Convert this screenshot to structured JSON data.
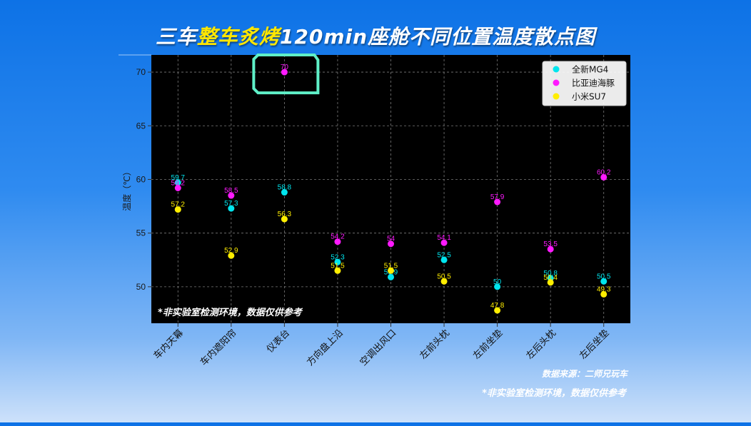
{
  "title": {
    "prefix": "三车",
    "highlight": "整车炙烤",
    "suffix": "120min座舱不同位置温度散点图"
  },
  "inner_note": "*非实验室检测环境，数据仅供参考",
  "footer": {
    "source": "数据来源：二师兄玩车",
    "note": "*非实验室检测环境，数据仅供参考"
  },
  "chart_data": {
    "type": "scatter",
    "title": "三车整车炙烤120min座舱不同位置温度散点图",
    "xlabel": "",
    "ylabel": "温度（℃）",
    "categories": [
      "车内天幕",
      "车内遮阳帘",
      "仪表台",
      "方向盘上沿",
      "空调出风口",
      "左前头枕",
      "左前坐垫",
      "左后头枕",
      "左后坐垫"
    ],
    "yticks": [
      50,
      55,
      60,
      65,
      70
    ],
    "ylim": [
      46.6,
      71.6
    ],
    "grid": true,
    "legend_position": "top-right",
    "series": [
      {
        "name": "全新MG4",
        "color": "#00e5ee",
        "values": [
          59.7,
          57.3,
          58.8,
          52.3,
          50.9,
          52.5,
          50.0,
          50.8,
          50.5
        ],
        "labels": [
          "59.7",
          "57.3",
          "58.8",
          "52.3",
          "50.9",
          "52.5",
          "50",
          "50.8",
          "50.5"
        ]
      },
      {
        "name": "比亚迪海豚",
        "color": "#ff1aff",
        "values": [
          59.2,
          58.5,
          70.0,
          54.2,
          54.0,
          54.1,
          57.9,
          53.5,
          60.2
        ],
        "labels": [
          "59.2",
          "58.5",
          "70",
          "54.2",
          "54",
          "54.1",
          "57.9",
          "53.5",
          "60.2"
        ]
      },
      {
        "name": "小米SU7",
        "color": "#ffee00",
        "values": [
          57.2,
          52.9,
          56.3,
          51.5,
          51.5,
          50.5,
          47.8,
          50.4,
          49.3
        ],
        "labels": [
          "57.2",
          "52.9",
          "56.3",
          "51.5",
          "51.5",
          "50.5",
          "47.8",
          "50.4",
          "49.3"
        ]
      }
    ],
    "highlight": {
      "category": "仪表台",
      "series": "比亚迪海豚",
      "color": "#5ff0c8"
    }
  }
}
